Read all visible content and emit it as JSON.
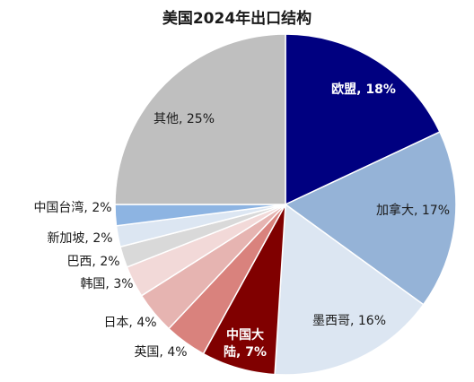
{
  "chart_data": {
    "type": "pie",
    "title": "美国2024年出口结构",
    "slices": [
      {
        "label": "欧盟",
        "pct_text": "18%",
        "value": 18,
        "color": "#000080",
        "text_color": "#ffffff",
        "bold": true
      },
      {
        "label": "加拿大",
        "pct_text": "17%",
        "value": 17,
        "color": "#95b3d7",
        "text_color": "#1a1a1a",
        "bold": false
      },
      {
        "label": "墨西哥",
        "pct_text": "16%",
        "value": 16,
        "color": "#dce6f2",
        "text_color": "#1a1a1a",
        "bold": false
      },
      {
        "label": "中国大陆",
        "label_lines": [
          "中国大",
          "陆, 7%"
        ],
        "pct_text": "7%",
        "value": 7,
        "color": "#800000",
        "text_color": "#ffffff",
        "bold": true
      },
      {
        "label": "英国",
        "pct_text": "4%",
        "value": 4,
        "color": "#d9827d",
        "text_color": "#1a1a1a",
        "bold": false
      },
      {
        "label": "日本",
        "pct_text": "4%",
        "value": 4,
        "color": "#e6b4b1",
        "text_color": "#1a1a1a",
        "bold": false
      },
      {
        "label": "韩国",
        "pct_text": "3%",
        "value": 3,
        "color": "#f2d9d8",
        "text_color": "#1a1a1a",
        "bold": false
      },
      {
        "label": "巴西",
        "pct_text": "2%",
        "value": 2,
        "color": "#d9d9d9",
        "text_color": "#1a1a1a",
        "bold": false
      },
      {
        "label": "新加坡",
        "pct_text": "2%",
        "value": 2,
        "color": "#dce6f2",
        "text_color": "#1a1a1a",
        "bold": false
      },
      {
        "label": "中国台湾",
        "pct_text": "2%",
        "value": 2,
        "color": "#8db4e2",
        "text_color": "#1a1a1a",
        "bold": false
      },
      {
        "label": "其他",
        "pct_text": "25%",
        "value": 25,
        "color": "#bfbfbf",
        "text_color": "#1a1a1a",
        "bold": false
      }
    ]
  }
}
